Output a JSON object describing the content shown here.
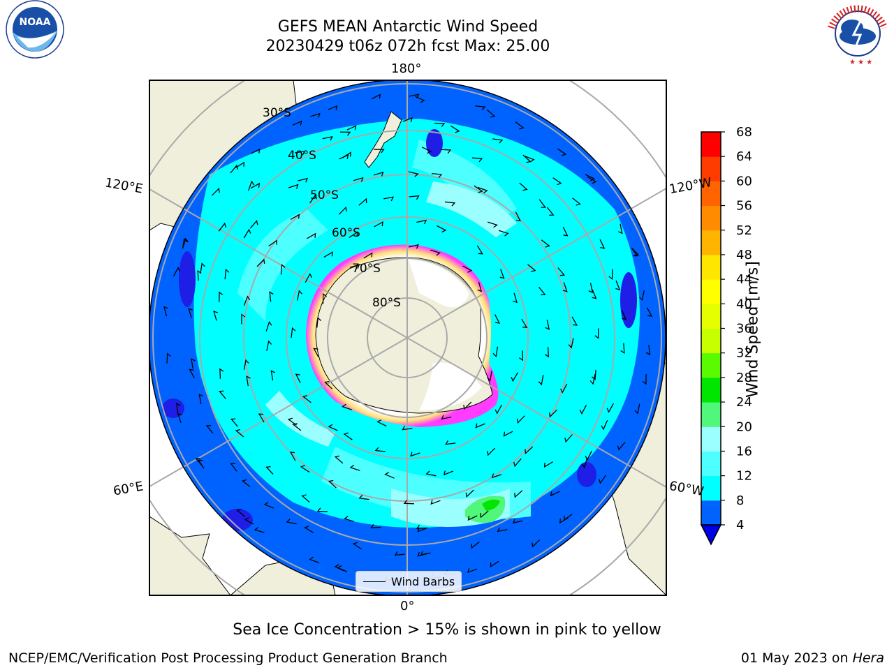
{
  "title": {
    "line1": "GEFS MEAN Antarctic Wind Speed",
    "line2": "20230429 t06z 072h fcst   Max: 25.00"
  },
  "logos": {
    "left": "NOAA",
    "left_ring_text": "NATIONAL OCEANIC AND ATMOSPHERIC ADMINISTRATION · U.S. DEPARTMENT OF COMMERCE",
    "right": "NATIONAL WEATHER SERVICE"
  },
  "map": {
    "projection": "south polar stereographic",
    "longitude_labels": [
      "180°",
      "120°E",
      "120°W",
      "60°E",
      "60°W",
      "0°"
    ],
    "latitude_labels": [
      "30°S",
      "40°S",
      "50°S",
      "60°S",
      "70°S",
      "80°S"
    ],
    "legend": "Wind Barbs"
  },
  "colorbar": {
    "label": "Wind Speed [m/s]",
    "ticks": [
      "4",
      "8",
      "12",
      "16",
      "20",
      "24",
      "28",
      "32",
      "36",
      "40",
      "44",
      "48",
      "52",
      "56",
      "60",
      "64",
      "68"
    ],
    "colors": [
      "#0063ff",
      "#00ffff",
      "#4dffff",
      "#9cffff",
      "#50f77b",
      "#00e600",
      "#5afa00",
      "#c8ff00",
      "#e6ff00",
      "#ffff00",
      "#ffe600",
      "#ffb400",
      "#ff8c00",
      "#ff6400",
      "#ff3c00",
      "#ff0000"
    ],
    "under_color": "#0000e6",
    "ocean_shades": {
      "low": "#0063ff",
      "mid": "#00ffff",
      "high": "#9cffff",
      "deep": "#1e1ee6",
      "land": "#efefdc",
      "ice_pink": "#ff3cff",
      "ice_yellow": "#ffb400"
    }
  },
  "note": "Sea Ice Concentration > 15% is shown in pink to yellow",
  "footer": {
    "left": "NCEP/EMC/Verification Post Processing Product Generation Branch",
    "right_date": "01 May 2023 on ",
    "right_host": "Hera"
  }
}
